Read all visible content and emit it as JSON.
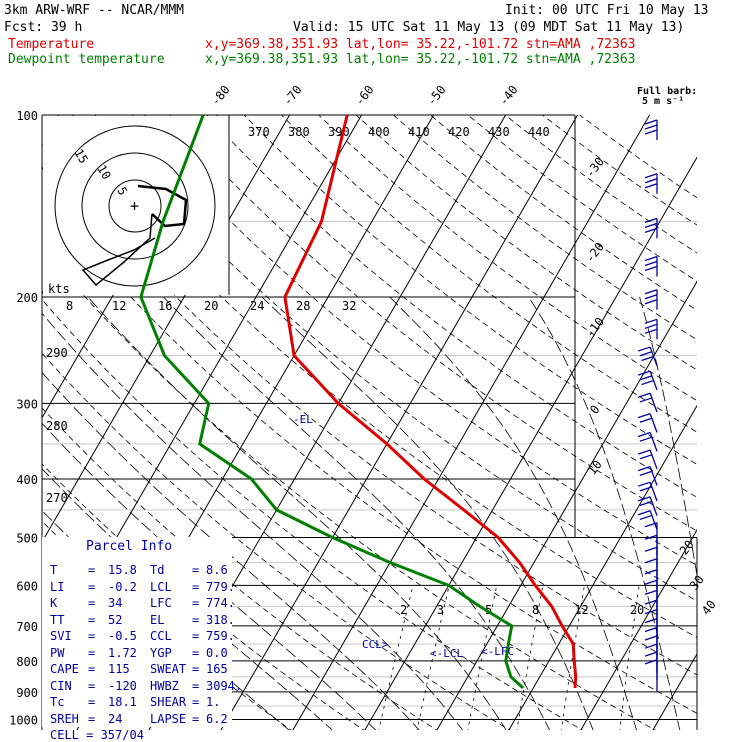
{
  "header": {
    "model": "3km ARW-WRF -- NCAR/MMM",
    "init": "Init: 00 UTC Fri 10 May 13",
    "fcst": "Fcst:   39 h",
    "valid": "Valid: 15 UTC Sat 11 May 13 (09 MDT Sat 11 May 13)",
    "temp_label": "Temperature",
    "temp_loc": "x,y=369.38,351.93   lat,lon= 35.22,-101.72  stn=AMA ,72363",
    "dew_label": "Dewpoint temperature",
    "dew_loc": "x,y=369.38,351.93   lat,lon= 35.22,-101.72  stn=AMA ,72363",
    "barb_title": "Full barb:",
    "barb_unit": "5 m s⁻¹"
  },
  "colors": {
    "temperature": "#e00000",
    "dewpoint": "#008000",
    "parcel_text": "#0000a0",
    "hodo": "#000000"
  },
  "chart_data": [
    {
      "type": "line",
      "title": "Skew-T log-P",
      "pressure_ticks": [
        100,
        200,
        300,
        400,
        500,
        600,
        700,
        800,
        900,
        1000
      ],
      "skewed_isotherm_labels": [
        "-80",
        "-70",
        "-60",
        "-50",
        "-40",
        "-30",
        "-20",
        "-10",
        "0",
        "10",
        "20",
        "30",
        "40"
      ],
      "theta_labels": [
        "290",
        "280",
        "270"
      ],
      "theta_e_labels": [
        "370",
        "380",
        "390",
        "400",
        "410",
        "420",
        "430",
        "440"
      ],
      "mixing_ratio_labels": [
        "2",
        "3",
        "5",
        "8",
        "12",
        "20"
      ],
      "series": [
        {
          "name": "Temperature",
          "pressure_hPa": [
            100,
            150,
            200,
            250,
            300,
            350,
            400,
            450,
            500,
            550,
            600,
            650,
            700,
            750,
            800,
            850,
            887
          ],
          "temp_C": [
            -62,
            -57,
            -56,
            -50,
            -40,
            -30,
            -22,
            -14,
            -7,
            -2,
            2,
            6,
            9,
            12,
            13.5,
            15,
            15.8
          ]
        },
        {
          "name": "Dewpoint temperature",
          "pressure_hPa": [
            100,
            150,
            200,
            250,
            300,
            350,
            400,
            450,
            500,
            550,
            600,
            650,
            700,
            750,
            800,
            850,
            887
          ],
          "dewpoint_C": [
            -82,
            -79,
            -76,
            -68,
            -58,
            -56,
            -46,
            -40,
            -30,
            -20,
            -10,
            -4,
            2,
            3,
            4,
            6,
            8.6
          ]
        }
      ],
      "annotations": [
        "-EL",
        "CCL>",
        "<-LCL",
        "<-LFC"
      ],
      "wind_barbs_title": "Full barb:"
    },
    {
      "type": "line",
      "title": "Hodograph",
      "unit_label": "kts",
      "ring_labels": [
        "15",
        "10",
        "5"
      ],
      "axis_ticks": [
        "8",
        "12",
        "16",
        "20",
        "24",
        "28",
        "32"
      ]
    }
  ],
  "parcel_info": {
    "title": "Parcel Info",
    "rows": [
      [
        "T",
        "=",
        "15.8",
        "Td",
        "=",
        "8.6"
      ],
      [
        "LI",
        "=",
        "-0.2",
        "LCL",
        "=",
        "779."
      ],
      [
        "K",
        "=",
        "34",
        "LFC",
        "=",
        "774."
      ],
      [
        "TT",
        "=",
        "52",
        "EL",
        "=",
        "318."
      ],
      [
        "SVI",
        "=",
        "-0.5",
        "CCL",
        "=",
        "759."
      ],
      [
        "PW",
        "=",
        "1.72",
        "YGP",
        "=",
        "0.0"
      ],
      [
        "CAPE",
        "=",
        "115",
        "SWEAT",
        "=",
        "165"
      ],
      [
        "CIN",
        "=",
        "-120",
        "HWBZ",
        "=",
        "3094."
      ],
      [
        "Tc",
        "=",
        "18.1",
        "SHEAR",
        "=",
        "1."
      ],
      [
        "SREH",
        "=",
        "24",
        "LAPSE",
        "=",
        "6.2"
      ]
    ],
    "cell": "CELL = 357/04"
  }
}
